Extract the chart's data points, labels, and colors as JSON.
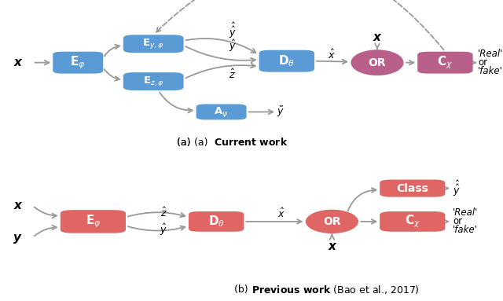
{
  "fig_width": 6.4,
  "fig_height": 3.83,
  "bg_color": "#ffffff",
  "blue_box_color": "#5b9bd5",
  "pink_box_color": "#b8608a",
  "red_box_color": "#e06565",
  "pink_ellipse_color": "#b8608a",
  "red_ellipse_color": "#e06565",
  "arrow_color": "#999999",
  "caption_a": "(a)  Current work",
  "caption_b_bold": "(b) ",
  "caption_b_bw": "Previous work",
  "caption_b_rest": " (Bao et al., 2017)"
}
